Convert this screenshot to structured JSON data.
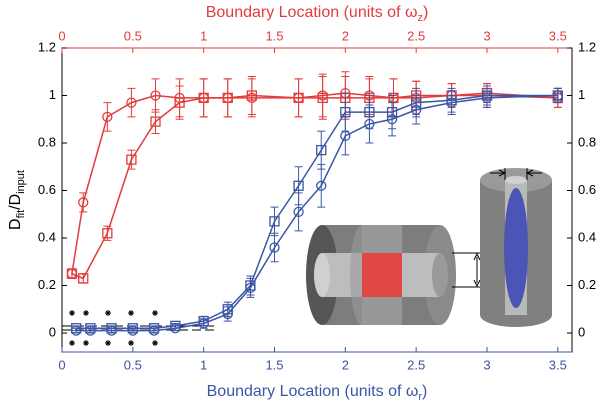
{
  "chart_data": {
    "type": "errorbar-line",
    "xlabel": [
      "Boundary Location (units of ω",
      "r",
      ")"
    ],
    "x2label": [
      "Boundary Location (units of ω",
      "z",
      ")"
    ],
    "ylabel": [
      "D",
      "fit",
      "/D",
      "input"
    ],
    "xlim": [
      0,
      3.6
    ],
    "xticks": [
      0,
      0.5,
      1,
      1.5,
      2,
      2.5,
      3,
      3.5
    ],
    "x2lim": [
      0,
      3.6
    ],
    "x2ticks": [
      0,
      0.5,
      1,
      1.5,
      2,
      2.5,
      3,
      3.5
    ],
    "ylim": [
      -0.08,
      1.2
    ],
    "yticks": [
      0,
      0.2,
      0.4,
      0.6,
      0.8,
      1,
      1.2
    ],
    "xcolor": "#3a56a5",
    "x2color": "#e33b3b",
    "series": [
      {
        "marker": "circle",
        "color": "#e33b3b",
        "axis": "x2",
        "x": [
          0.07,
          0.15,
          0.32,
          0.49,
          0.66,
          0.83,
          1.0,
          1.17,
          1.34,
          1.67,
          1.84,
          2.0,
          2.17,
          2.34,
          2.5,
          2.75,
          3.0,
          3.5
        ],
        "values": [
          0.25,
          0.55,
          0.91,
          0.97,
          1.0,
          0.99,
          0.99,
          0.99,
          0.99,
          0.99,
          1.0,
          1.01,
          1.0,
          0.99,
          0.99,
          1.0,
          1.0,
          0.99
        ],
        "errors": [
          0.02,
          0.04,
          0.06,
          0.06,
          0.07,
          0.08,
          0.08,
          0.08,
          0.08,
          0.08,
          0.09,
          0.09,
          0.08,
          0.08,
          0.07,
          0.05,
          0.05,
          0.04
        ]
      },
      {
        "marker": "square",
        "color": "#e33b3b",
        "axis": "x2",
        "x": [
          0.07,
          0.15,
          0.32,
          0.49,
          0.66,
          0.83,
          1.0,
          1.17,
          1.34,
          1.67,
          1.84,
          2.0,
          2.17,
          2.34,
          2.5,
          2.75,
          3.0,
          3.5
        ],
        "values": [
          0.25,
          0.23,
          0.42,
          0.73,
          0.89,
          0.97,
          0.99,
          0.99,
          1.0,
          0.99,
          0.99,
          0.99,
          0.99,
          0.99,
          1.0,
          1.0,
          1.01,
          0.99
        ],
        "errors": [
          0.02,
          0.02,
          0.03,
          0.04,
          0.05,
          0.07,
          0.08,
          0.08,
          0.08,
          0.08,
          0.09,
          0.09,
          0.08,
          0.08,
          0.06,
          0.05,
          0.04,
          0.04
        ]
      },
      {
        "marker": "square",
        "color": "#3a56a5",
        "axis": "x",
        "x": [
          0.1,
          0.2,
          0.35,
          0.5,
          0.65,
          0.8,
          1.0,
          1.17,
          1.33,
          1.5,
          1.67,
          1.83,
          2.0,
          2.17,
          2.33,
          2.5,
          2.75,
          3.0,
          3.5
        ],
        "values": [
          0.02,
          0.02,
          0.02,
          0.02,
          0.02,
          0.03,
          0.05,
          0.1,
          0.2,
          0.47,
          0.62,
          0.77,
          0.93,
          0.93,
          0.93,
          0.97,
          0.98,
          1.0,
          1.0
        ],
        "errors": [
          0.01,
          0.01,
          0.01,
          0.01,
          0.01,
          0.01,
          0.02,
          0.03,
          0.04,
          0.06,
          0.08,
          0.08,
          0.08,
          0.07,
          0.07,
          0.06,
          0.05,
          0.04,
          0.03
        ]
      },
      {
        "marker": "circle",
        "color": "#3a56a5",
        "axis": "x",
        "x": [
          0.1,
          0.2,
          0.35,
          0.5,
          0.65,
          0.8,
          1.0,
          1.17,
          1.33,
          1.5,
          1.67,
          1.83,
          2.0,
          2.17,
          2.33,
          2.5,
          2.75,
          3.0,
          3.5
        ],
        "values": [
          0.01,
          0.01,
          0.01,
          0.01,
          0.01,
          0.02,
          0.04,
          0.08,
          0.19,
          0.36,
          0.51,
          0.62,
          0.83,
          0.88,
          0.9,
          0.94,
          0.97,
          0.99,
          1.0
        ],
        "errors": [
          0.01,
          0.01,
          0.01,
          0.01,
          0.01,
          0.01,
          0.02,
          0.03,
          0.04,
          0.06,
          0.08,
          0.09,
          0.08,
          0.08,
          0.07,
          0.06,
          0.05,
          0.04,
          0.03
        ]
      }
    ]
  }
}
